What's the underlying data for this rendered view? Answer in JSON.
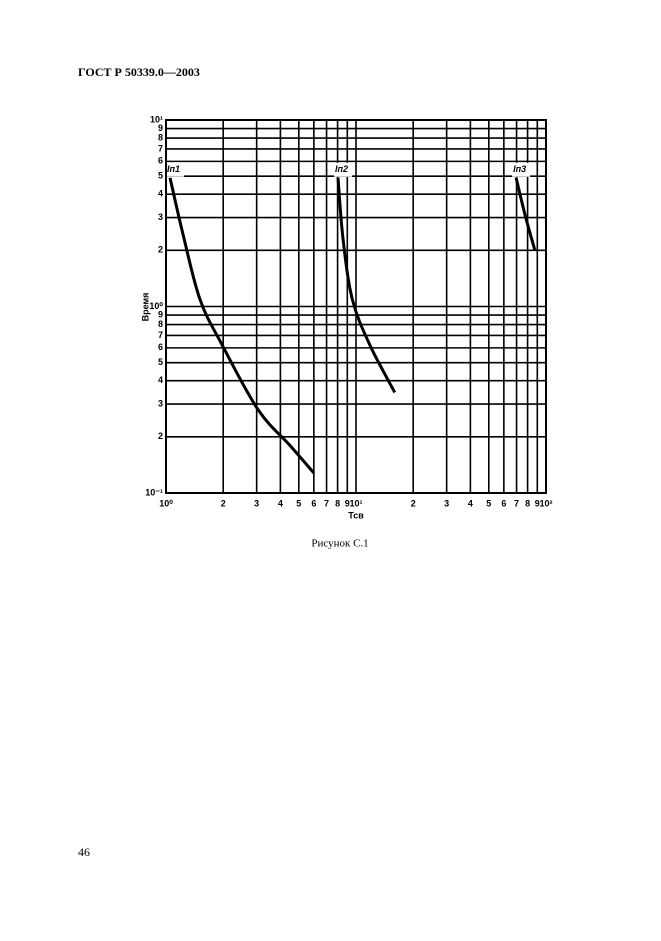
{
  "header": {
    "title": "ГОСТ Р 50339.0—2003"
  },
  "caption": "Рисунок С.1",
  "page_number": "46",
  "chart_data": {
    "type": "line",
    "x_label": "Тсв",
    "y_label": "Время",
    "xlog": true,
    "ylog": true,
    "grid": true,
    "color": "#000000",
    "xlim": [
      1,
      100
    ],
    "ylim": [
      0.1,
      10
    ],
    "xticks": [
      {
        "value": 1,
        "label": "10⁰"
      },
      2,
      3,
      4,
      5,
      6,
      7,
      8,
      9,
      {
        "value": 10,
        "label": "10¹"
      },
      20,
      30,
      40,
      50,
      60,
      70,
      80,
      90,
      {
        "value": 100,
        "label": "10²"
      }
    ],
    "xtick_labels": [
      "10⁰",
      "2",
      "3",
      "4",
      "5",
      "6",
      "7",
      "8",
      "9",
      "10¹",
      "2",
      "3",
      "4",
      "5",
      "6",
      "7",
      "8",
      "9",
      "10²"
    ],
    "yticks": [
      {
        "value": 0.1,
        "label": "10⁻¹"
      },
      0.2,
      0.3,
      0.4,
      0.5,
      0.6,
      0.7,
      0.8,
      0.9,
      {
        "value": 1,
        "label": "10⁰"
      },
      2,
      3,
      4,
      5,
      6,
      7,
      8,
      9,
      {
        "value": 10,
        "label": "10¹"
      }
    ],
    "ytick_labels": [
      "10⁻¹",
      "2",
      "3",
      "4",
      "5",
      "6",
      "7",
      "8",
      "9",
      "10⁰",
      "2",
      "3",
      "4",
      "5",
      "6",
      "7",
      "8",
      "9",
      "10¹"
    ],
    "series": [
      {
        "name": "Iп1",
        "x": [
          1.05,
          1.23,
          1.51,
          1.97,
          3.05,
          4.49,
          6.0
        ],
        "values": [
          4.9,
          2.43,
          1.09,
          0.625,
          0.28,
          0.18,
          0.128
        ]
      },
      {
        "name": "Iп2",
        "x": [
          8.04,
          8.55,
          9.57,
          11.8,
          16
        ],
        "values": [
          4.9,
          2.29,
          1.09,
          0.625,
          0.346
        ]
      },
      {
        "name": "Iп3",
        "x": [
          69.6,
          77.5,
          87.2
        ],
        "values": [
          4.9,
          3.11,
          2.02
        ]
      }
    ]
  }
}
